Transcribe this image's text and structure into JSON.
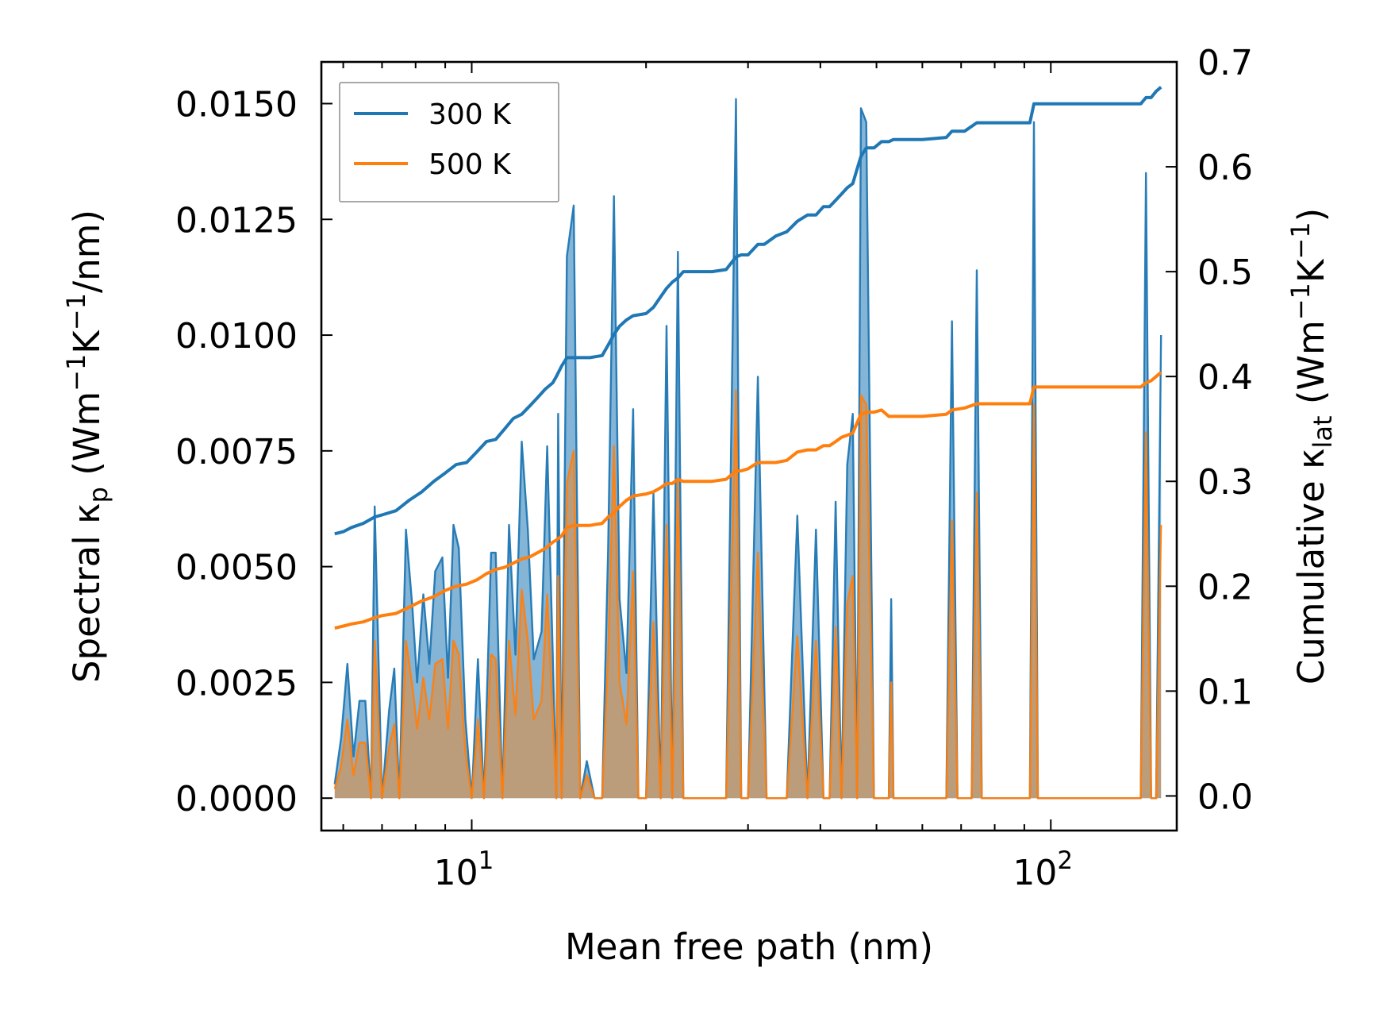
{
  "chart_data": {
    "type": "line",
    "x_scale": "log",
    "xlabel": "Mean free path (nm)",
    "ylabel_left": {
      "text": "Spectral κ",
      "sub": "p",
      "units_pre": " (Wm",
      "sup1": "−1",
      "units_mid": "K",
      "sup2": "−1",
      "units_post": "/nm)"
    },
    "ylabel_right": {
      "text": "Cumulative κ",
      "sub": "lat",
      "units_pre": " (Wm",
      "sup1": "−1",
      "units_mid": "K",
      "sup2": "−1",
      "units_post": ")"
    },
    "xlim": [
      5.5,
      165
    ],
    "ylim_left": [
      -0.0007,
      0.0159
    ],
    "ylim_right": [
      -0.033,
      0.7
    ],
    "x_ticks": [
      {
        "value": 10,
        "base": "10",
        "exp": "1"
      },
      {
        "value": 100,
        "base": "10",
        "exp": "2"
      }
    ],
    "y_ticks_left": [
      {
        "value": 0.0,
        "label": "0.0000"
      },
      {
        "value": 0.0025,
        "label": "0.0025"
      },
      {
        "value": 0.005,
        "label": "0.0050"
      },
      {
        "value": 0.0075,
        "label": "0.0075"
      },
      {
        "value": 0.01,
        "label": "0.0100"
      },
      {
        "value": 0.0125,
        "label": "0.0125"
      },
      {
        "value": 0.015,
        "label": "0.0150"
      }
    ],
    "y_ticks_right": [
      {
        "value": 0.0,
        "label": "0.0"
      },
      {
        "value": 0.1,
        "label": "0.1"
      },
      {
        "value": 0.2,
        "label": "0.2"
      },
      {
        "value": 0.3,
        "label": "0.3"
      },
      {
        "value": 0.4,
        "label": "0.4"
      },
      {
        "value": 0.5,
        "label": "0.5"
      },
      {
        "value": 0.6,
        "label": "0.6"
      },
      {
        "value": 0.7,
        "label": "0.7"
      }
    ],
    "legend": {
      "position": "top-left",
      "entries": [
        {
          "name": "300 K",
          "color": "#1f77b4"
        },
        {
          "name": "500 K",
          "color": "#ff7f0e"
        }
      ]
    },
    "series": [
      {
        "name": "300 K spectral",
        "axis": "left",
        "role": "spectral",
        "color": "#1f77b4",
        "x": [
          5.8,
          5.95,
          6.1,
          6.25,
          6.4,
          6.55,
          6.7,
          6.8,
          7.0,
          7.2,
          7.35,
          7.5,
          7.7,
          7.9,
          8.05,
          8.25,
          8.45,
          8.65,
          8.9,
          9.1,
          9.3,
          9.5,
          9.75,
          10.0,
          10.25,
          10.5,
          10.8,
          11.0,
          11.3,
          11.6,
          11.9,
          12.2,
          12.5,
          12.8,
          13.2,
          13.5,
          13.8,
          14.0,
          14.1,
          14.3,
          14.6,
          15.0,
          15.4,
          15.8,
          16.3,
          16.8,
          17.2,
          17.6,
          18.0,
          18.5,
          19.0,
          19.4,
          20.0,
          20.6,
          21.2,
          21.7,
          22.2,
          22.7,
          23.2,
          23.8,
          24.5,
          26.0,
          27.5,
          28.6,
          29.2,
          30.0,
          31.2,
          32.3,
          33.5,
          35.0,
          36.5,
          38.0,
          39.3,
          40.5,
          41.5,
          42.5,
          43.5,
          44.5,
          45.5,
          46.3,
          47.0,
          48.0,
          49.5,
          51.0,
          52.5,
          53.0,
          53.5,
          55.0,
          60.0,
          66.0,
          67.5,
          69.0,
          71.0,
          73.0,
          74.5,
          76.0,
          85.0,
          92.0,
          93.5,
          95.0,
          96.5,
          98.0,
          120.0,
          140.0,
          143.0,
          146.0,
          149.0,
          152.0,
          155.0
        ],
        "y": [
          0.0003,
          0.0013,
          0.0029,
          0.0009,
          0.0021,
          0.0021,
          0.0,
          0.0063,
          0.0,
          0.0019,
          0.0028,
          0.0,
          0.0058,
          0.0041,
          0.0025,
          0.0044,
          0.0029,
          0.0049,
          0.0052,
          0.0026,
          0.0059,
          0.0054,
          0.0017,
          0.0,
          0.003,
          0.0,
          0.0053,
          0.0053,
          0.0,
          0.0059,
          0.0031,
          0.0077,
          0.0058,
          0.003,
          0.0036,
          0.0076,
          0.0031,
          0.0,
          0.0083,
          0.0,
          0.0117,
          0.0128,
          0.0,
          0.0008,
          0.0,
          0.0,
          0.0054,
          0.013,
          0.0043,
          0.0027,
          0.0084,
          0.0,
          0.0,
          0.0066,
          0.0,
          0.0102,
          0.0,
          0.0118,
          0.0,
          0.0,
          0.0,
          0.0,
          0.0,
          0.0151,
          0.0,
          0.0,
          0.0091,
          0.0,
          0.0,
          0.0,
          0.0061,
          0.0,
          0.0058,
          0.0,
          0.0,
          0.0064,
          0.0,
          0.0072,
          0.0083,
          0.0,
          0.0149,
          0.0146,
          0.0,
          0.0,
          0.0,
          0.0043,
          0.0,
          0.0,
          0.0,
          0.0,
          0.0103,
          0.0,
          0.0,
          0.0,
          0.0114,
          0.0,
          0.0,
          0.0,
          0.0146,
          0.0,
          0.0,
          0.0,
          0.0,
          0.0,
          0.0,
          0.0135,
          0.0,
          0.0,
          0.01
        ]
      },
      {
        "name": "500 K spectral",
        "axis": "left",
        "role": "spectral",
        "color": "#ff7f0e",
        "x": [
          5.8,
          5.95,
          6.1,
          6.25,
          6.4,
          6.55,
          6.7,
          6.8,
          7.0,
          7.2,
          7.35,
          7.5,
          7.7,
          7.9,
          8.05,
          8.25,
          8.45,
          8.65,
          8.9,
          9.1,
          9.3,
          9.5,
          9.75,
          10.0,
          10.25,
          10.5,
          10.8,
          11.0,
          11.3,
          11.6,
          11.9,
          12.2,
          12.5,
          12.8,
          13.2,
          13.5,
          13.8,
          14.0,
          14.1,
          14.3,
          14.6,
          15.0,
          15.4,
          15.8,
          16.3,
          16.8,
          17.2,
          17.6,
          18.0,
          18.5,
          19.0,
          19.4,
          20.0,
          20.6,
          21.2,
          21.7,
          22.2,
          22.7,
          23.2,
          23.8,
          24.5,
          26.0,
          27.5,
          28.6,
          29.2,
          30.0,
          31.2,
          32.3,
          33.5,
          35.0,
          36.5,
          38.0,
          39.3,
          40.5,
          41.5,
          42.5,
          43.5,
          44.5,
          45.5,
          46.3,
          47.0,
          48.0,
          49.5,
          51.0,
          52.5,
          53.0,
          53.5,
          55.0,
          60.0,
          66.0,
          67.5,
          69.0,
          71.0,
          73.0,
          74.5,
          76.0,
          85.0,
          92.0,
          93.5,
          95.0,
          96.5,
          98.0,
          120.0,
          140.0,
          143.0,
          146.0,
          149.0,
          152.0,
          155.0
        ],
        "y": [
          0.0002,
          0.0007,
          0.0017,
          0.0005,
          0.0012,
          0.0012,
          0.0,
          0.0034,
          0.0,
          0.0011,
          0.0016,
          0.0,
          0.0034,
          0.0024,
          0.0015,
          0.0026,
          0.0017,
          0.0029,
          0.003,
          0.0015,
          0.0034,
          0.0031,
          0.001,
          0.0,
          0.0017,
          0.0,
          0.0031,
          0.003,
          0.0,
          0.0034,
          0.0018,
          0.0045,
          0.0034,
          0.0017,
          0.0021,
          0.0044,
          0.0018,
          0.0,
          0.0048,
          0.0,
          0.0068,
          0.0075,
          0.0,
          0.0005,
          0.0,
          0.0,
          0.0031,
          0.0076,
          0.0025,
          0.0016,
          0.0049,
          0.0,
          0.0,
          0.0038,
          0.0,
          0.0059,
          0.0,
          0.0069,
          0.0,
          0.0,
          0.0,
          0.0,
          0.0,
          0.0088,
          0.0,
          0.0,
          0.0053,
          0.0,
          0.0,
          0.0,
          0.0035,
          0.0,
          0.0034,
          0.0,
          0.0,
          0.0037,
          0.0,
          0.0042,
          0.0048,
          0.0,
          0.0087,
          0.0085,
          0.0,
          0.0,
          0.0,
          0.0025,
          0.0,
          0.0,
          0.0,
          0.0,
          0.006,
          0.0,
          0.0,
          0.0,
          0.0066,
          0.0,
          0.0,
          0.0,
          0.0085,
          0.0,
          0.0,
          0.0,
          0.0,
          0.0,
          0.0,
          0.0079,
          0.0,
          0.0,
          0.0059
        ]
      },
      {
        "name": "300 K cumulative",
        "axis": "right",
        "role": "cumulative",
        "color": "#1f77b4",
        "x": [
          5.8,
          6.0,
          6.2,
          6.5,
          6.8,
          7.0,
          7.4,
          7.8,
          8.2,
          8.6,
          9.0,
          9.4,
          9.8,
          10.2,
          10.6,
          11.0,
          11.4,
          11.8,
          12.2,
          12.6,
          13.0,
          13.4,
          13.8,
          14.0,
          14.3,
          14.6,
          15.0,
          16.0,
          16.8,
          17.2,
          17.6,
          18.0,
          18.5,
          19.0,
          20.0,
          20.6,
          21.2,
          21.7,
          22.2,
          22.7,
          23.2,
          24.0,
          26.0,
          27.5,
          28.6,
          29.2,
          30.0,
          31.2,
          32.0,
          33.5,
          35.0,
          36.5,
          38.0,
          39.3,
          40.5,
          41.5,
          42.5,
          43.5,
          44.5,
          45.5,
          46.3,
          47.0,
          48.0,
          49.5,
          51.0,
          52.5,
          53.5,
          60.0,
          66.0,
          67.5,
          71.0,
          74.5,
          85.0,
          92.0,
          93.5,
          95.0,
          120.0,
          140.0,
          143.0,
          146.0,
          149.0,
          152.0,
          155.0
        ],
        "y": [
          0.25,
          0.252,
          0.256,
          0.26,
          0.266,
          0.268,
          0.272,
          0.282,
          0.29,
          0.3,
          0.308,
          0.316,
          0.318,
          0.328,
          0.338,
          0.34,
          0.35,
          0.36,
          0.364,
          0.372,
          0.38,
          0.388,
          0.394,
          0.4,
          0.41,
          0.418,
          0.418,
          0.418,
          0.42,
          0.43,
          0.44,
          0.448,
          0.454,
          0.458,
          0.46,
          0.466,
          0.476,
          0.484,
          0.49,
          0.494,
          0.5,
          0.5,
          0.5,
          0.502,
          0.514,
          0.516,
          0.516,
          0.526,
          0.526,
          0.534,
          0.538,
          0.548,
          0.554,
          0.554,
          0.562,
          0.562,
          0.568,
          0.574,
          0.58,
          0.584,
          0.598,
          0.61,
          0.618,
          0.618,
          0.624,
          0.624,
          0.626,
          0.626,
          0.628,
          0.634,
          0.634,
          0.642,
          0.642,
          0.642,
          0.66,
          0.66,
          0.66,
          0.66,
          0.66,
          0.666,
          0.666,
          0.672,
          0.676
        ]
      },
      {
        "name": "500 K cumulative",
        "axis": "right",
        "role": "cumulative",
        "color": "#ff7f0e",
        "x": [
          5.8,
          6.0,
          6.2,
          6.5,
          6.8,
          7.0,
          7.4,
          7.8,
          8.2,
          8.6,
          9.0,
          9.4,
          9.8,
          10.2,
          10.6,
          11.0,
          11.4,
          11.8,
          12.2,
          12.6,
          13.0,
          13.4,
          13.8,
          14.0,
          14.3,
          14.6,
          15.0,
          16.0,
          16.8,
          17.2,
          17.6,
          18.0,
          18.5,
          19.0,
          20.0,
          20.6,
          21.2,
          21.7,
          22.2,
          22.7,
          23.2,
          24.0,
          26.0,
          27.5,
          28.6,
          29.2,
          30.0,
          31.2,
          32.0,
          33.5,
          35.0,
          36.5,
          38.0,
          39.3,
          40.5,
          41.5,
          42.5,
          43.5,
          44.5,
          45.5,
          46.3,
          47.0,
          48.0,
          49.5,
          51.0,
          52.5,
          53.5,
          60.0,
          66.0,
          67.5,
          71.0,
          74.5,
          85.0,
          92.0,
          93.5,
          95.0,
          120.0,
          140.0,
          143.0,
          146.0,
          149.0,
          152.0,
          155.0
        ],
        "y": [
          0.16,
          0.162,
          0.164,
          0.166,
          0.17,
          0.172,
          0.174,
          0.18,
          0.186,
          0.19,
          0.196,
          0.2,
          0.202,
          0.206,
          0.212,
          0.216,
          0.218,
          0.222,
          0.226,
          0.228,
          0.232,
          0.236,
          0.242,
          0.244,
          0.248,
          0.256,
          0.258,
          0.258,
          0.26,
          0.266,
          0.27,
          0.276,
          0.282,
          0.286,
          0.288,
          0.29,
          0.294,
          0.298,
          0.298,
          0.302,
          0.3,
          0.3,
          0.3,
          0.302,
          0.31,
          0.31,
          0.312,
          0.318,
          0.318,
          0.318,
          0.32,
          0.328,
          0.33,
          0.33,
          0.334,
          0.334,
          0.338,
          0.342,
          0.344,
          0.346,
          0.356,
          0.364,
          0.366,
          0.366,
          0.368,
          0.362,
          0.362,
          0.362,
          0.364,
          0.368,
          0.37,
          0.374,
          0.374,
          0.374,
          0.39,
          0.39,
          0.39,
          0.39,
          0.39,
          0.394,
          0.396,
          0.4,
          0.404
        ]
      }
    ]
  }
}
